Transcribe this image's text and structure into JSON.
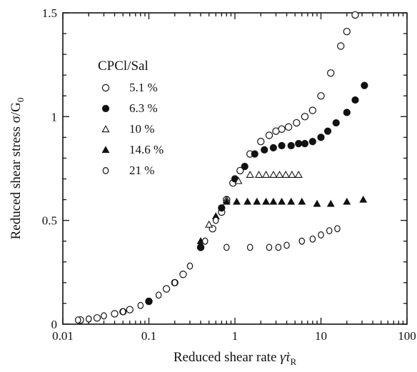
{
  "chart_data": {
    "type": "scatter",
    "title": "",
    "xlabel": "Reduced shear rate γ̇τR",
    "ylabel": "Reduced shear stress σ/G0",
    "xscale": "log",
    "xlim": [
      0.01,
      100
    ],
    "ylim": [
      0,
      1.5
    ],
    "x_tick_labels": [
      "0.01",
      "0.1",
      "1",
      "10",
      "100"
    ],
    "y_tick_labels": [
      "0",
      "0.5",
      "1",
      "1.5"
    ],
    "grid": false,
    "legend": {
      "title": "CPCl/Sal",
      "position": "top-left"
    },
    "series": [
      {
        "name": "5.1 %",
        "marker": "open-circle",
        "points": [
          [
            0.016,
            0.02
          ],
          [
            0.025,
            0.03
          ],
          [
            0.04,
            0.05
          ],
          [
            0.06,
            0.07
          ],
          [
            0.1,
            0.11
          ],
          [
            0.16,
            0.17
          ],
          [
            0.25,
            0.24
          ],
          [
            0.4,
            0.37
          ],
          [
            0.55,
            0.46
          ],
          [
            0.7,
            0.54
          ],
          [
            0.8,
            0.6
          ],
          [
            0.95,
            0.68
          ],
          [
            1.15,
            0.74
          ],
          [
            1.5,
            0.82
          ],
          [
            2.0,
            0.88
          ],
          [
            2.5,
            0.91
          ],
          [
            3.0,
            0.93
          ],
          [
            3.5,
            0.94
          ],
          [
            4.2,
            0.95
          ],
          [
            5.2,
            0.97
          ],
          [
            6.5,
            1.0
          ],
          [
            8.0,
            1.03
          ],
          [
            10.0,
            1.1
          ],
          [
            13.0,
            1.21
          ],
          [
            17.0,
            1.34
          ],
          [
            20.0,
            1.41
          ],
          [
            25.0,
            1.49
          ]
        ]
      },
      {
        "name": "6.3 %",
        "marker": "filled-circle",
        "points": [
          [
            0.05,
            0.06
          ],
          [
            0.1,
            0.11
          ],
          [
            0.2,
            0.2
          ],
          [
            0.4,
            0.37
          ],
          [
            0.7,
            0.56
          ],
          [
            1.0,
            0.7
          ],
          [
            1.3,
            0.76
          ],
          [
            1.7,
            0.82
          ],
          [
            2.2,
            0.84
          ],
          [
            2.8,
            0.85
          ],
          [
            3.5,
            0.86
          ],
          [
            4.5,
            0.86
          ],
          [
            5.5,
            0.87
          ],
          [
            6.5,
            0.87
          ],
          [
            8.0,
            0.88
          ],
          [
            10.0,
            0.9
          ],
          [
            12.0,
            0.93
          ],
          [
            15.0,
            0.97
          ],
          [
            20.0,
            1.02
          ],
          [
            25.0,
            1.08
          ],
          [
            32.0,
            1.15
          ]
        ]
      },
      {
        "name": "10 %",
        "marker": "open-triangle",
        "points": [
          [
            0.5,
            0.48
          ],
          [
            0.8,
            0.6
          ],
          [
            1.1,
            0.69
          ],
          [
            1.5,
            0.72
          ],
          [
            1.9,
            0.72
          ],
          [
            2.3,
            0.72
          ],
          [
            2.8,
            0.72
          ],
          [
            3.3,
            0.72
          ],
          [
            3.9,
            0.72
          ],
          [
            4.6,
            0.72
          ],
          [
            5.5,
            0.72
          ]
        ]
      },
      {
        "name": "14.6 %",
        "marker": "filled-triangle",
        "points": [
          [
            0.4,
            0.4
          ],
          [
            0.6,
            0.52
          ],
          [
            0.8,
            0.59
          ],
          [
            1.05,
            0.59
          ],
          [
            1.4,
            0.59
          ],
          [
            1.8,
            0.59
          ],
          [
            2.3,
            0.59
          ],
          [
            2.8,
            0.59
          ],
          [
            3.5,
            0.59
          ],
          [
            4.5,
            0.59
          ],
          [
            6.0,
            0.59
          ],
          [
            9.0,
            0.58
          ],
          [
            13.0,
            0.58
          ],
          [
            20.0,
            0.59
          ],
          [
            31.0,
            0.6
          ]
        ]
      },
      {
        "name": "21 %",
        "marker": "open-diamond",
        "points": [
          [
            0.015,
            0.02
          ],
          [
            0.02,
            0.025
          ],
          [
            0.03,
            0.04
          ],
          [
            0.05,
            0.06
          ],
          [
            0.08,
            0.09
          ],
          [
            0.13,
            0.14
          ],
          [
            0.2,
            0.2
          ],
          [
            0.3,
            0.28
          ],
          [
            0.45,
            0.4
          ],
          [
            0.6,
            0.5
          ],
          [
            0.8,
            0.37
          ],
          [
            1.5,
            0.37
          ],
          [
            2.5,
            0.37
          ],
          [
            3.2,
            0.37
          ],
          [
            4.0,
            0.38
          ],
          [
            6.0,
            0.4
          ],
          [
            8.0,
            0.41
          ],
          [
            10.0,
            0.43
          ],
          [
            12.5,
            0.45
          ],
          [
            15.5,
            0.46
          ]
        ]
      }
    ]
  }
}
